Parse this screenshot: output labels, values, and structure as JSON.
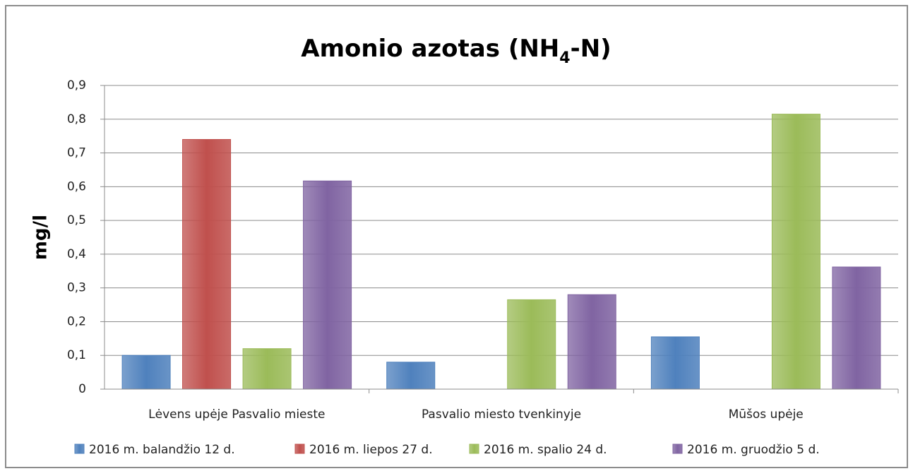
{
  "chart_data": {
    "type": "bar",
    "title": [
      "Amonio azotas (NH",
      "4",
      "-N)"
    ],
    "y_label": "mg/l",
    "categories": [
      "Lėvens upėje Pasvalio mieste",
      "Pasvalio miesto tvenkinyje",
      "Mūšos upėje"
    ],
    "series": [
      {
        "name": "2016 m. balandžio 12 d.",
        "color": "#4f81bd",
        "values": [
          0.1,
          0.08,
          0.155
        ]
      },
      {
        "name": "2016 m. liepos 27 d.",
        "color": "#c0504d",
        "values": [
          0.74,
          null,
          null
        ]
      },
      {
        "name": "2016 m. spalio 24 d.",
        "color": "#9bbb59",
        "values": [
          0.12,
          0.265,
          0.815
        ]
      },
      {
        "name": "2016 m. gruodžio 5 d.",
        "color": "#8064a2",
        "values": [
          0.617,
          0.28,
          0.362
        ]
      }
    ],
    "ylim": [
      0,
      0.9
    ],
    "yticks": [
      0,
      {
        "value": 0.1,
        "label": "0,1"
      },
      {
        "value": 0.2,
        "label": "0,2"
      },
      {
        "value": 0.3,
        "label": "0,3"
      },
      {
        "value": 0.4,
        "label": "0,4"
      },
      {
        "value": 0.5,
        "label": "0,5"
      },
      {
        "value": 0.6,
        "label": "0,6"
      },
      {
        "value": 0.7,
        "label": "0,7"
      },
      {
        "value": 0.8,
        "label": "0,8"
      },
      {
        "value": 0.9,
        "label": "0,9"
      }
    ],
    "grid": true,
    "legend": "bottom"
  }
}
